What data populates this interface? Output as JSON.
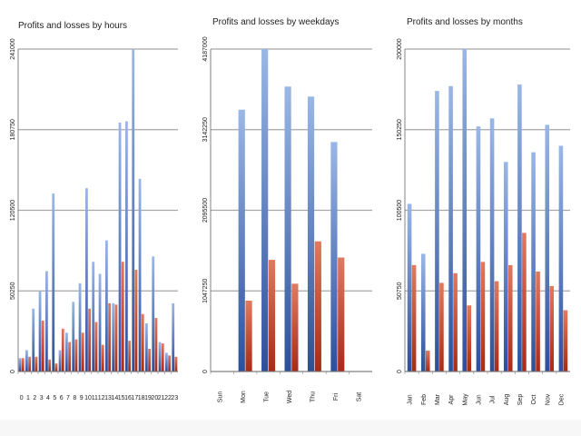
{
  "colors": {
    "profit_top": "#9ab7e6",
    "profit_bottom": "#2d4f9a",
    "loss_top": "#e07a5f",
    "loss_bottom": "#a82a17",
    "grid": "#a6a6a6"
  },
  "chart_data": [
    {
      "type": "bar",
      "title": "Profits and losses by hours",
      "categories": [
        "0",
        "1",
        "2",
        "3",
        "4",
        "5",
        "6",
        "7",
        "8",
        "9",
        "10",
        "11",
        "12",
        "13",
        "14",
        "15",
        "16",
        "17",
        "18",
        "19",
        "20",
        "21",
        "22",
        "23"
      ],
      "yticks": [
        "0",
        "50250",
        "120500",
        "180750",
        "241000"
      ],
      "ylim": [
        0,
        241000
      ],
      "grid": true,
      "series": [
        {
          "values": [
            10000,
            16000,
            47000,
            60000,
            75000,
            133000,
            16000,
            29000,
            52000,
            66000,
            137000,
            82000,
            73000,
            98000,
            51000,
            186000,
            187000,
            241000,
            144000,
            36000,
            86000,
            22000,
            14000,
            51000
          ]
        },
        {
          "values": [
            10000,
            11000,
            11000,
            38000,
            9000,
            6000,
            32000,
            22000,
            24000,
            29000,
            47000,
            37000,
            20000,
            51000,
            50000,
            82000,
            23000,
            76000,
            43000,
            17000,
            40000,
            21000,
            12000,
            11000
          ]
        }
      ]
    },
    {
      "type": "bar",
      "title": "Profits and losses by weekdays",
      "categories": [
        "Sun",
        "Mon",
        "Tue",
        "Wed",
        "Thu",
        "Fri",
        "Sat"
      ],
      "yticks": [
        "0",
        "1047250",
        "2095500",
        "3142250",
        "4187000"
      ],
      "ylim": [
        0,
        4187000
      ],
      "grid": true,
      "series": [
        {
          "values": [
            0,
            3400000,
            4187000,
            3700000,
            3570000,
            2980000,
            0
          ]
        },
        {
          "values": [
            0,
            920000,
            1450000,
            1140000,
            1690000,
            1480000,
            0
          ]
        }
      ]
    },
    {
      "type": "bar",
      "title": "Profits and losses by months",
      "categories": [
        "Jan",
        "Feb",
        "Mar",
        "Apr",
        "May",
        "Jun",
        "Jul",
        "Aug",
        "Sep",
        "Oct",
        "Nov",
        "Dec"
      ],
      "yticks": [
        "0",
        "50750",
        "100500",
        "150250",
        "200000"
      ],
      "ylim": [
        0,
        200000
      ],
      "grid": true,
      "series": [
        {
          "values": [
            104000,
            73000,
            174000,
            177000,
            200000,
            152000,
            157000,
            130000,
            178000,
            136000,
            153000,
            140000
          ]
        },
        {
          "values": [
            66000,
            13000,
            55000,
            61000,
            41000,
            68000,
            56000,
            66000,
            86000,
            62000,
            53000,
            38000
          ]
        }
      ]
    }
  ]
}
